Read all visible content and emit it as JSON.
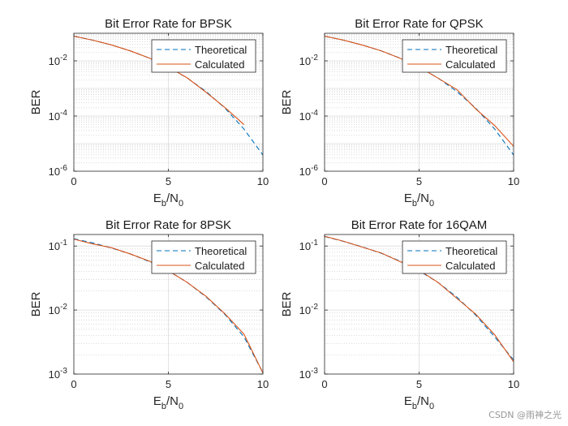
{
  "watermark": "CSDN @雨神之光",
  "colors": {
    "theoretical": "#0072BD",
    "calculated": "#D95319",
    "axis": "#262626",
    "grid_major": "#dcdcdc",
    "grid_minor": "#cfcfcf"
  },
  "chart_data": [
    {
      "type": "line",
      "title": "Bit Error Rate for BPSK",
      "xlabel_main": "E",
      "xlabel_sub1": "b",
      "xlabel_mid": "/N",
      "xlabel_sub2": "0",
      "ylabel": "BER",
      "xlim": [
        0,
        10
      ],
      "ylim_log10": [
        -6,
        -1.0
      ],
      "xticks": [
        0,
        5,
        10
      ],
      "xtick_labels": [
        "0",
        "5",
        "10"
      ],
      "yticks_log10": [
        -6,
        -4,
        -2
      ],
      "ytick_base": "10",
      "ytick_exps": [
        "-6",
        "-4",
        "-2"
      ],
      "legend": {
        "location": "top-right",
        "entries": [
          "Theoretical",
          "Calculated"
        ]
      },
      "series": [
        {
          "name": "Theoretical",
          "style": "dashed",
          "x": [
            0,
            1,
            2,
            3,
            4,
            5,
            6,
            7,
            8,
            9,
            10
          ],
          "y": [
            0.0786,
            0.0563,
            0.0375,
            0.0229,
            0.0125,
            0.00595,
            0.00239,
            0.00077,
            0.000191,
            3.36e-05,
            3.87e-06
          ]
        },
        {
          "name": "Calculated",
          "style": "solid",
          "x": [
            0,
            1,
            2,
            3,
            4,
            5,
            6,
            7,
            8,
            9
          ],
          "y": [
            0.0787,
            0.0562,
            0.0376,
            0.0228,
            0.0126,
            0.00594,
            0.00241,
            0.00072,
            0.000201,
            4.9e-05
          ]
        }
      ]
    },
    {
      "type": "line",
      "title": "Bit Error Rate for QPSK",
      "xlabel_main": "E",
      "xlabel_sub1": "b",
      "xlabel_mid": "/N",
      "xlabel_sub2": "0",
      "ylabel": "BER",
      "xlim": [
        0,
        10
      ],
      "ylim_log10": [
        -6,
        -1.0
      ],
      "xticks": [
        0,
        5,
        10
      ],
      "xtick_labels": [
        "0",
        "5",
        "10"
      ],
      "yticks_log10": [
        -6,
        -4,
        -2
      ],
      "ytick_base": "10",
      "ytick_exps": [
        "-6",
        "-4",
        "-2"
      ],
      "legend": {
        "location": "top-right",
        "entries": [
          "Theoretical",
          "Calculated"
        ]
      },
      "series": [
        {
          "name": "Theoretical",
          "style": "dashed",
          "x": [
            0,
            1,
            2,
            3,
            4,
            5,
            6,
            7,
            8,
            9,
            10
          ],
          "y": [
            0.0786,
            0.0563,
            0.0375,
            0.0229,
            0.0125,
            0.00595,
            0.00239,
            0.00077,
            0.000191,
            3.36e-05,
            3.87e-06
          ]
        },
        {
          "name": "Calculated",
          "style": "solid",
          "x": [
            0,
            1,
            2,
            3,
            4,
            5,
            6,
            7,
            8,
            9,
            10
          ],
          "y": [
            0.0785,
            0.0565,
            0.0373,
            0.0231,
            0.0124,
            0.00598,
            0.00236,
            0.00091,
            0.00018,
            4.5e-05,
            8e-06
          ]
        }
      ]
    },
    {
      "type": "line",
      "title": "Bit Error Rate for 8PSK",
      "xlabel_main": "E",
      "xlabel_sub1": "b",
      "xlabel_mid": "/N",
      "xlabel_sub2": "0",
      "ylabel": "BER",
      "xlim": [
        0,
        10
      ],
      "ylim_log10": [
        -3,
        -0.82
      ],
      "xticks": [
        0,
        5,
        10
      ],
      "xtick_labels": [
        "0",
        "5",
        "10"
      ],
      "yticks_log10": [
        -3,
        -2,
        -1
      ],
      "ytick_base": "10",
      "ytick_exps": [
        "-3",
        "-2",
        "-1"
      ],
      "legend": {
        "location": "top-right",
        "entries": [
          "Theoretical",
          "Calculated"
        ]
      },
      "series": [
        {
          "name": "Theoretical",
          "style": "dashed",
          "x": [
            0,
            1,
            2,
            3,
            4,
            5,
            6,
            7,
            8,
            9,
            10
          ],
          "y": [
            0.13,
            0.112,
            0.093,
            0.075,
            0.057,
            0.041,
            0.027,
            0.016,
            0.0085,
            0.0038,
            0.00105
          ]
        },
        {
          "name": "Calculated",
          "style": "solid",
          "x": [
            0,
            1,
            2,
            3,
            4,
            5,
            6,
            7,
            8,
            9,
            10
          ],
          "y": [
            0.128,
            0.108,
            0.094,
            0.075,
            0.058,
            0.041,
            0.027,
            0.0163,
            0.0087,
            0.0042,
            0.00104
          ]
        }
      ]
    },
    {
      "type": "line",
      "title": "Bit Error Rate for 16QAM",
      "xlabel_main": "E",
      "xlabel_sub1": "b",
      "xlabel_mid": "/N",
      "xlabel_sub2": "0",
      "ylabel": "BER",
      "xlim": [
        0,
        10
      ],
      "ylim_log10": [
        -3,
        -0.82
      ],
      "xticks": [
        0,
        5,
        10
      ],
      "xtick_labels": [
        "0",
        "5",
        "10"
      ],
      "yticks_log10": [
        -3,
        -2,
        -1
      ],
      "ytick_base": "10",
      "ytick_exps": [
        "-3",
        "-2",
        "-1"
      ],
      "legend": {
        "location": "top-right",
        "entries": [
          "Theoretical",
          "Calculated"
        ]
      },
      "series": [
        {
          "name": "Theoretical",
          "style": "dashed",
          "x": [
            0,
            1,
            2,
            3,
            4,
            5,
            6,
            7,
            8,
            9,
            10
          ],
          "y": [
            0.141,
            0.118,
            0.097,
            0.077,
            0.058,
            0.041,
            0.027,
            0.0159,
            0.0083,
            0.0038,
            0.00166
          ]
        },
        {
          "name": "Calculated",
          "style": "solid",
          "x": [
            0,
            1,
            2,
            3,
            4,
            5,
            6,
            7,
            8,
            9,
            10
          ],
          "y": [
            0.142,
            0.119,
            0.096,
            0.078,
            0.057,
            0.042,
            0.027,
            0.0152,
            0.0086,
            0.0041,
            0.00155
          ]
        }
      ]
    }
  ]
}
